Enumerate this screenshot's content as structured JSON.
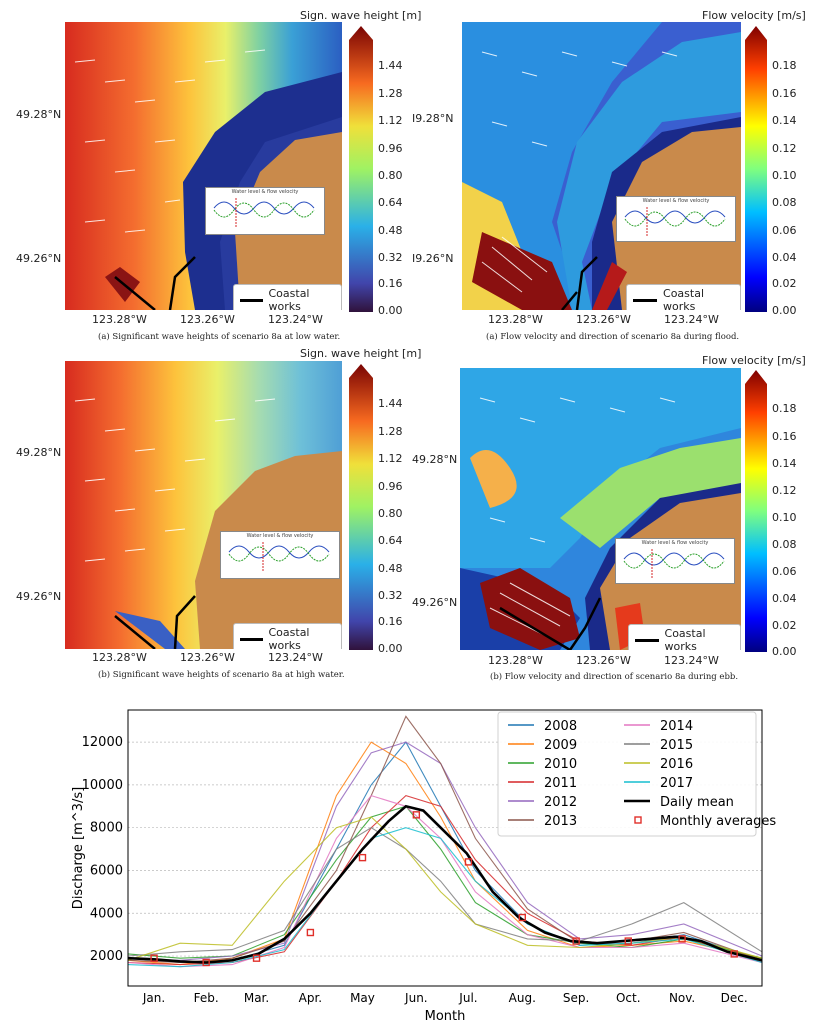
{
  "maps": {
    "top_left": {
      "colorbar_title": "Sign. wave height [m]",
      "ticks": [
        "1.44",
        "1.28",
        "1.12",
        "0.96",
        "0.80",
        "0.64",
        "0.48",
        "0.32",
        "0.16",
        "0.00"
      ],
      "lat_labels": [
        "49.28°N",
        "49.26°N"
      ],
      "lon_labels": [
        "123.28°W",
        "123.26°W",
        "123.24°W"
      ],
      "legend": "Coastal works",
      "inset_title": "Water level & flow velocity",
      "caption": "(a) Significant wave heights of scenario 8a at low water."
    },
    "top_right": {
      "colorbar_title": "Flow velocity [m/s]",
      "ticks": [
        "0.18",
        "0.16",
        "0.14",
        "0.12",
        "0.10",
        "0.08",
        "0.06",
        "0.04",
        "0.02",
        "0.00"
      ],
      "lat_labels": [
        "I9.28°N",
        "I9.26°N"
      ],
      "lon_labels": [
        "123.28°W",
        "123.26°W",
        "123.24°W"
      ],
      "legend": "Coastal works",
      "inset_title": "Water level & flow velocity",
      "caption": "(a) Flow velocity and direction of scenario 8a during flood."
    },
    "bottom_left": {
      "colorbar_title": "Sign. wave height [m]",
      "ticks": [
        "1.44",
        "1.28",
        "1.12",
        "0.96",
        "0.80",
        "0.64",
        "0.48",
        "0.32",
        "0.16",
        "0.00"
      ],
      "lat_labels": [
        "49.28°N",
        "49.26°N"
      ],
      "lon_labels": [
        "123.28°W",
        "123.26°W",
        "123.24°W"
      ],
      "legend": "Coastal works",
      "inset_title": "Water level & flow velocity",
      "caption": "(b) Significant wave heights of scenario 8a at high water."
    },
    "bottom_right": {
      "colorbar_title": "Flow velocity [m/s]",
      "ticks": [
        "0.18",
        "0.16",
        "0.14",
        "0.12",
        "0.10",
        "0.08",
        "0.06",
        "0.04",
        "0.02",
        "0.00"
      ],
      "lat_labels": [
        "49.28°N",
        "49.26°N"
      ],
      "lon_labels": [
        "123.28°W",
        "123.26°W",
        "123.24°W"
      ],
      "legend": "Coastal works",
      "inset_title": "Water level & flow velocity",
      "caption": "(b) Flow velocity and direction of scenario 8a during ebb."
    }
  },
  "colors": {
    "land": "#c98a4b",
    "coast_line": "#000000",
    "mean_line": "#000000",
    "monthly_marker": "#e0302a"
  },
  "chart_data": [
    {
      "type": "heatmap",
      "title": "",
      "colorbar_label": "Sign. wave height [m]",
      "colorbar_range": [
        0.0,
        1.6
      ],
      "colorbar_ticks": [
        0.0,
        0.16,
        0.32,
        0.48,
        0.64,
        0.8,
        0.96,
        1.12,
        1.28,
        1.44
      ],
      "xlabels": [
        "123.28°W",
        "123.26°W",
        "123.24°W"
      ],
      "ylabels": [
        "49.28°N",
        "49.26°N"
      ],
      "legend": [
        "Coastal works"
      ]
    },
    {
      "type": "heatmap",
      "title": "",
      "colorbar_label": "Flow velocity [m/s]",
      "colorbar_range": [
        0.0,
        0.2
      ],
      "colorbar_ticks": [
        0.0,
        0.02,
        0.04,
        0.06,
        0.08,
        0.1,
        0.12,
        0.14,
        0.16,
        0.18
      ],
      "xlabels": [
        "123.28°W",
        "123.26°W",
        "123.24°W"
      ],
      "ylabels": [
        "I9.28°N",
        "I9.26°N"
      ],
      "legend": [
        "Coastal works"
      ]
    },
    {
      "type": "heatmap",
      "title": "",
      "colorbar_label": "Sign. wave height [m]",
      "colorbar_range": [
        0.0,
        1.6
      ],
      "colorbar_ticks": [
        0.0,
        0.16,
        0.32,
        0.48,
        0.64,
        0.8,
        0.96,
        1.12,
        1.28,
        1.44
      ],
      "xlabels": [
        "123.28°W",
        "123.26°W",
        "123.24°W"
      ],
      "ylabels": [
        "49.28°N",
        "49.26°N"
      ],
      "legend": [
        "Coastal works"
      ]
    },
    {
      "type": "heatmap",
      "title": "",
      "colorbar_label": "Flow velocity [m/s]",
      "colorbar_range": [
        0.0,
        0.2
      ],
      "colorbar_ticks": [
        0.0,
        0.02,
        0.04,
        0.06,
        0.08,
        0.1,
        0.12,
        0.14,
        0.16,
        0.18
      ],
      "xlabels": [
        "123.28°W",
        "123.26°W",
        "123.24°W"
      ],
      "ylabels": [
        "49.28°N",
        "49.26°N"
      ],
      "legend": [
        "Coastal works"
      ]
    },
    {
      "type": "line",
      "xlabel": "Month",
      "ylabel": "Discharge [m^3/s]",
      "categories": [
        "Jan.",
        "Feb.",
        "Mar.",
        "Apr.",
        "May",
        "Jun.",
        "Jul.",
        "Aug.",
        "Sep.",
        "Oct.",
        "Nov.",
        "Dec."
      ],
      "xlim": [
        0,
        365
      ],
      "ylim": [
        600,
        13500
      ],
      "yticks": [
        2000,
        4000,
        6000,
        8000,
        10000,
        12000
      ],
      "grid": true,
      "legend_position": "top-right",
      "series": [
        {
          "name": "2008",
          "color": "#1f77b4",
          "x": [
            0,
            30,
            60,
            90,
            120,
            140,
            160,
            180,
            200,
            230,
            260,
            290,
            320,
            365
          ],
          "y": [
            1900,
            1700,
            1800,
            2500,
            7000,
            10000,
            12000,
            9000,
            6000,
            3500,
            2500,
            2600,
            3000,
            1800
          ]
        },
        {
          "name": "2009",
          "color": "#ff7f0e",
          "x": [
            0,
            30,
            60,
            90,
            120,
            140,
            160,
            180,
            200,
            230,
            260,
            290,
            320,
            365
          ],
          "y": [
            1800,
            1600,
            1900,
            2800,
            9500,
            12000,
            11000,
            8500,
            5500,
            3200,
            2400,
            2500,
            2700,
            1900
          ]
        },
        {
          "name": "2010",
          "color": "#2ca02c",
          "x": [
            0,
            30,
            60,
            90,
            120,
            140,
            160,
            180,
            200,
            230,
            260,
            290,
            320,
            365
          ],
          "y": [
            2100,
            1900,
            2000,
            3000,
            6500,
            8500,
            9000,
            7000,
            4500,
            3000,
            2600,
            2400,
            2800,
            1900
          ]
        },
        {
          "name": "2011",
          "color": "#d62728",
          "x": [
            0,
            30,
            60,
            90,
            120,
            140,
            160,
            180,
            200,
            230,
            260,
            290,
            320,
            365
          ],
          "y": [
            1700,
            1600,
            1700,
            2200,
            5500,
            8000,
            9500,
            9000,
            6500,
            4000,
            2700,
            2500,
            2900,
            1700
          ]
        },
        {
          "name": "2012",
          "color": "#9467bd",
          "x": [
            0,
            30,
            60,
            90,
            120,
            140,
            160,
            180,
            200,
            230,
            260,
            290,
            320,
            365
          ],
          "y": [
            1900,
            1800,
            2000,
            2600,
            9000,
            11500,
            12000,
            11000,
            8000,
            4500,
            2800,
            3000,
            3500,
            2000
          ]
        },
        {
          "name": "2013",
          "color": "#8c564b",
          "x": [
            0,
            30,
            60,
            90,
            120,
            140,
            160,
            180,
            200,
            230,
            260,
            290,
            320,
            365
          ],
          "y": [
            1800,
            1700,
            1900,
            2700,
            6000,
            9500,
            13200,
            11000,
            7500,
            4200,
            2600,
            2700,
            3100,
            1800
          ]
        },
        {
          "name": "2014",
          "color": "#e377c2",
          "x": [
            0,
            30,
            60,
            90,
            120,
            140,
            160,
            180,
            200,
            230,
            260,
            290,
            320,
            365
          ],
          "y": [
            1700,
            1500,
            1600,
            2400,
            7500,
            9500,
            9000,
            7500,
            5000,
            3000,
            2400,
            2400,
            2600,
            1700
          ]
        },
        {
          "name": "2015",
          "color": "#7f7f7f",
          "x": [
            0,
            30,
            60,
            90,
            120,
            140,
            160,
            180,
            200,
            230,
            260,
            290,
            320,
            365
          ],
          "y": [
            2000,
            2200,
            2300,
            3200,
            7000,
            8000,
            7000,
            5500,
            3500,
            2800,
            2700,
            3500,
            4500,
            2200
          ]
        },
        {
          "name": "2016",
          "color": "#bcbd22",
          "x": [
            0,
            30,
            60,
            90,
            120,
            140,
            160,
            180,
            200,
            230,
            260,
            290,
            320,
            365
          ],
          "y": [
            1800,
            2600,
            2500,
            5500,
            8000,
            8500,
            7000,
            5000,
            3500,
            2500,
            2400,
            2600,
            2900,
            1900
          ]
        },
        {
          "name": "2017",
          "color": "#17becf",
          "x": [
            0,
            30,
            60,
            90,
            120,
            140,
            160,
            180,
            200,
            230,
            260,
            290,
            320,
            365
          ],
          "y": [
            1600,
            1500,
            1700,
            2300,
            5500,
            7500,
            8000,
            7500,
            5500,
            3500,
            2500,
            2600,
            2800,
            1700
          ]
        },
        {
          "name": "Daily mean",
          "color": "#000000",
          "x": [
            0,
            15,
            30,
            45,
            60,
            75,
            90,
            105,
            120,
            135,
            150,
            160,
            170,
            180,
            195,
            210,
            225,
            240,
            255,
            270,
            285,
            300,
            315,
            330,
            345,
            365
          ],
          "y": [
            1900,
            1850,
            1750,
            1700,
            1800,
            2100,
            2800,
            4000,
            5500,
            7000,
            8300,
            9000,
            8800,
            8000,
            6800,
            5000,
            3800,
            3100,
            2700,
            2600,
            2700,
            2800,
            2900,
            2700,
            2200,
            1800
          ]
        },
        {
          "name": "Monthly averages",
          "color": "#e0302a",
          "x": [
            15,
            45,
            74,
            105,
            135,
            166,
            196,
            227,
            258,
            288,
            319,
            349
          ],
          "y": [
            1900,
            1700,
            1900,
            3100,
            6600,
            8600,
            6400,
            3800,
            2700,
            2700,
            2800,
            2100
          ]
        }
      ]
    }
  ]
}
